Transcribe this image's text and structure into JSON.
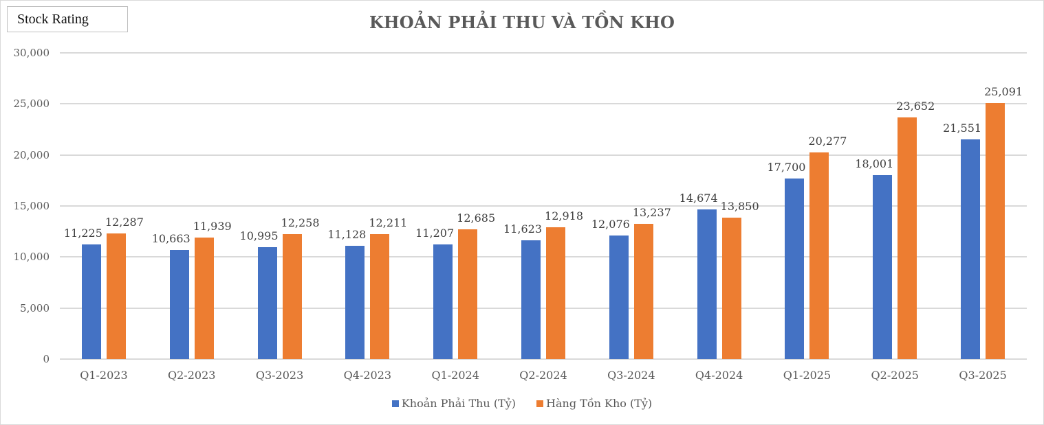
{
  "header": {
    "badge_label": "Stock Rating"
  },
  "colors": {
    "series_0": "#4472c4",
    "series_1": "#ed7d31",
    "grid": "#d9d9d9",
    "title": "#595959"
  },
  "chart_data": {
    "type": "bar",
    "title": "KHOẢN PHẢI THU VÀ TỒN KHO",
    "xlabel": "",
    "ylabel": "",
    "ylim": [
      0,
      30000
    ],
    "yticks": [
      "0",
      "5,000",
      "10,000",
      "15,000",
      "20,000",
      "25,000",
      "30,000"
    ],
    "grid": true,
    "legend_position": "bottom",
    "categories": [
      "Q1-2023",
      "Q2-2023",
      "Q3-2023",
      "Q4-2023",
      "Q1-2024",
      "Q2-2024",
      "Q3-2024",
      "Q4-2024",
      "Q1-2025",
      "Q2-2025",
      "Q3-2025"
    ],
    "series": [
      {
        "name": "Khoản Phải Thu (Tỷ)",
        "values": [
          11225,
          10663,
          10995,
          11128,
          11207,
          11623,
          12076,
          14674,
          17700,
          18001,
          21551
        ],
        "labels": [
          "11,225",
          "10,663",
          "10,995",
          "11,128",
          "11,207",
          "11,623",
          "12,076",
          "14,674",
          "17,700",
          "18,001",
          "21,551"
        ]
      },
      {
        "name": "Hàng Tồn Kho (Tỷ)",
        "values": [
          12287,
          11939,
          12258,
          12211,
          12685,
          12918,
          13237,
          13850,
          20277,
          23652,
          25091
        ],
        "labels": [
          "12,287",
          "11,939",
          "12,258",
          "12,211",
          "12,685",
          "12,918",
          "13,237",
          "13,850",
          "20,277",
          "23,652",
          "25,091"
        ]
      }
    ]
  }
}
